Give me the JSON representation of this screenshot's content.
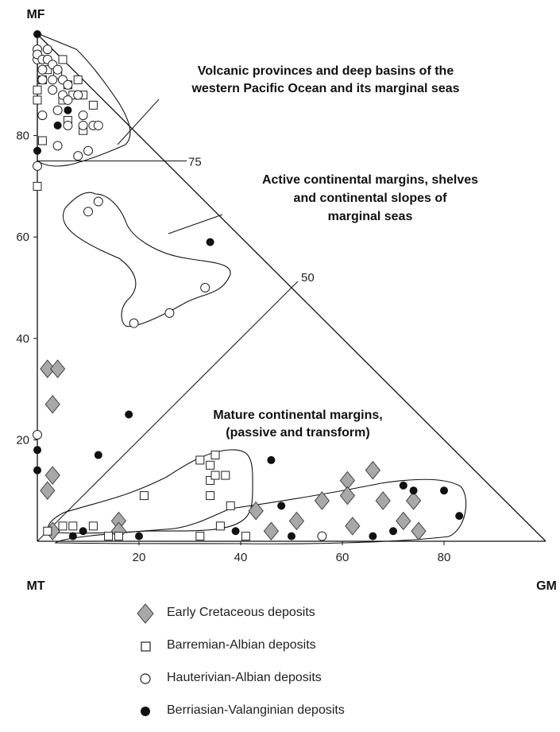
{
  "chart_data": {
    "type": "ternary-scatter",
    "vertices": {
      "top": "MF",
      "left": "MT",
      "right": "GM"
    },
    "y_ticks": [
      20,
      40,
      60,
      80
    ],
    "x_ticks": [
      20,
      40,
      60,
      80
    ],
    "diagonal_ticks": [
      50,
      75
    ],
    "fields": [
      {
        "label_lines": [
          "Volcanic provinces and deep basins of the",
          "western Pacific Ocean and its marginal seas"
        ]
      },
      {
        "label_lines": [
          "Active continental margins, shelves",
          "and continental slopes of",
          "marginal seas"
        ]
      },
      {
        "label_lines": [
          "Mature continental margins,",
          "(passive and transform)"
        ]
      }
    ],
    "series": [
      {
        "name": "Early Cretaceous deposits",
        "marker": "diamond",
        "color": "#a8a8a8",
        "points": [
          [
            2,
            34
          ],
          [
            4,
            34
          ],
          [
            3,
            27
          ],
          [
            3,
            13
          ],
          [
            2,
            10
          ],
          [
            3,
            2
          ],
          [
            16,
            4
          ],
          [
            16,
            2
          ],
          [
            43,
            6
          ],
          [
            46,
            2
          ],
          [
            51,
            4
          ],
          [
            56,
            8
          ],
          [
            61,
            12
          ],
          [
            61,
            9
          ],
          [
            62,
            3
          ],
          [
            66,
            14
          ],
          [
            68,
            8
          ],
          [
            72,
            4
          ],
          [
            74,
            8
          ],
          [
            75,
            2
          ]
        ]
      },
      {
        "name": "Barremian-Albian deposits",
        "marker": "square",
        "color": "#ffffff",
        "points": [
          [
            0,
            70
          ],
          [
            1,
            79
          ],
          [
            0,
            87
          ],
          [
            0,
            89
          ],
          [
            1,
            91
          ],
          [
            2,
            93
          ],
          [
            4,
            92
          ],
          [
            5,
            95
          ],
          [
            6,
            90
          ],
          [
            5,
            87
          ],
          [
            7,
            88
          ],
          [
            8,
            91
          ],
          [
            9,
            88
          ],
          [
            6,
            83
          ],
          [
            9,
            81
          ],
          [
            11,
            86
          ],
          [
            32,
            16
          ],
          [
            34,
            15
          ],
          [
            35,
            17
          ],
          [
            34,
            12
          ],
          [
            35,
            13
          ],
          [
            37,
            13
          ],
          [
            34,
            9
          ],
          [
            38,
            7
          ],
          [
            36,
            3
          ],
          [
            41,
            1
          ],
          [
            21,
            9
          ],
          [
            5,
            3
          ],
          [
            2,
            2
          ],
          [
            7,
            3
          ],
          [
            11,
            3
          ],
          [
            14,
            1
          ],
          [
            16,
            1
          ],
          [
            32,
            1
          ]
        ]
      },
      {
        "name": "Hauterivian-Albian deposits",
        "marker": "circle",
        "color": "#ffffff",
        "points": [
          [
            0,
            95
          ],
          [
            0,
            97
          ],
          [
            0,
            96
          ],
          [
            1,
            95
          ],
          [
            2,
            97
          ],
          [
            2,
            95
          ],
          [
            3,
            94
          ],
          [
            3,
            91
          ],
          [
            4,
            93
          ],
          [
            1,
            93
          ],
          [
            1,
            91
          ],
          [
            3,
            89
          ],
          [
            5,
            91
          ],
          [
            5,
            88
          ],
          [
            6,
            90
          ],
          [
            6,
            87
          ],
          [
            8,
            88
          ],
          [
            9,
            84
          ],
          [
            9,
            82
          ],
          [
            10,
            77
          ],
          [
            8,
            76
          ],
          [
            4,
            78
          ],
          [
            4,
            85
          ],
          [
            6,
            82
          ],
          [
            1,
            84
          ],
          [
            0,
            74
          ],
          [
            11,
            82
          ],
          [
            12,
            82
          ],
          [
            10,
            65
          ],
          [
            12,
            67
          ],
          [
            19,
            43
          ],
          [
            26,
            45
          ],
          [
            33,
            50
          ],
          [
            0,
            21
          ],
          [
            56,
            1
          ]
        ]
      },
      {
        "name": "Berriasian-Valanginian deposits",
        "marker": "dot",
        "color": "#111111",
        "points": [
          [
            0,
            100
          ],
          [
            6,
            85
          ],
          [
            4,
            82
          ],
          [
            0,
            77
          ],
          [
            34,
            59
          ],
          [
            18,
            25
          ],
          [
            12,
            17
          ],
          [
            0,
            18
          ],
          [
            0,
            14
          ],
          [
            46,
            16
          ],
          [
            39,
            2
          ],
          [
            48,
            7
          ],
          [
            72,
            11
          ],
          [
            74,
            10
          ],
          [
            80,
            10
          ],
          [
            83,
            5
          ],
          [
            7,
            1
          ],
          [
            9,
            2
          ],
          [
            20,
            1
          ],
          [
            50,
            1
          ],
          [
            66,
            1
          ],
          [
            70,
            2
          ]
        ]
      }
    ]
  }
}
